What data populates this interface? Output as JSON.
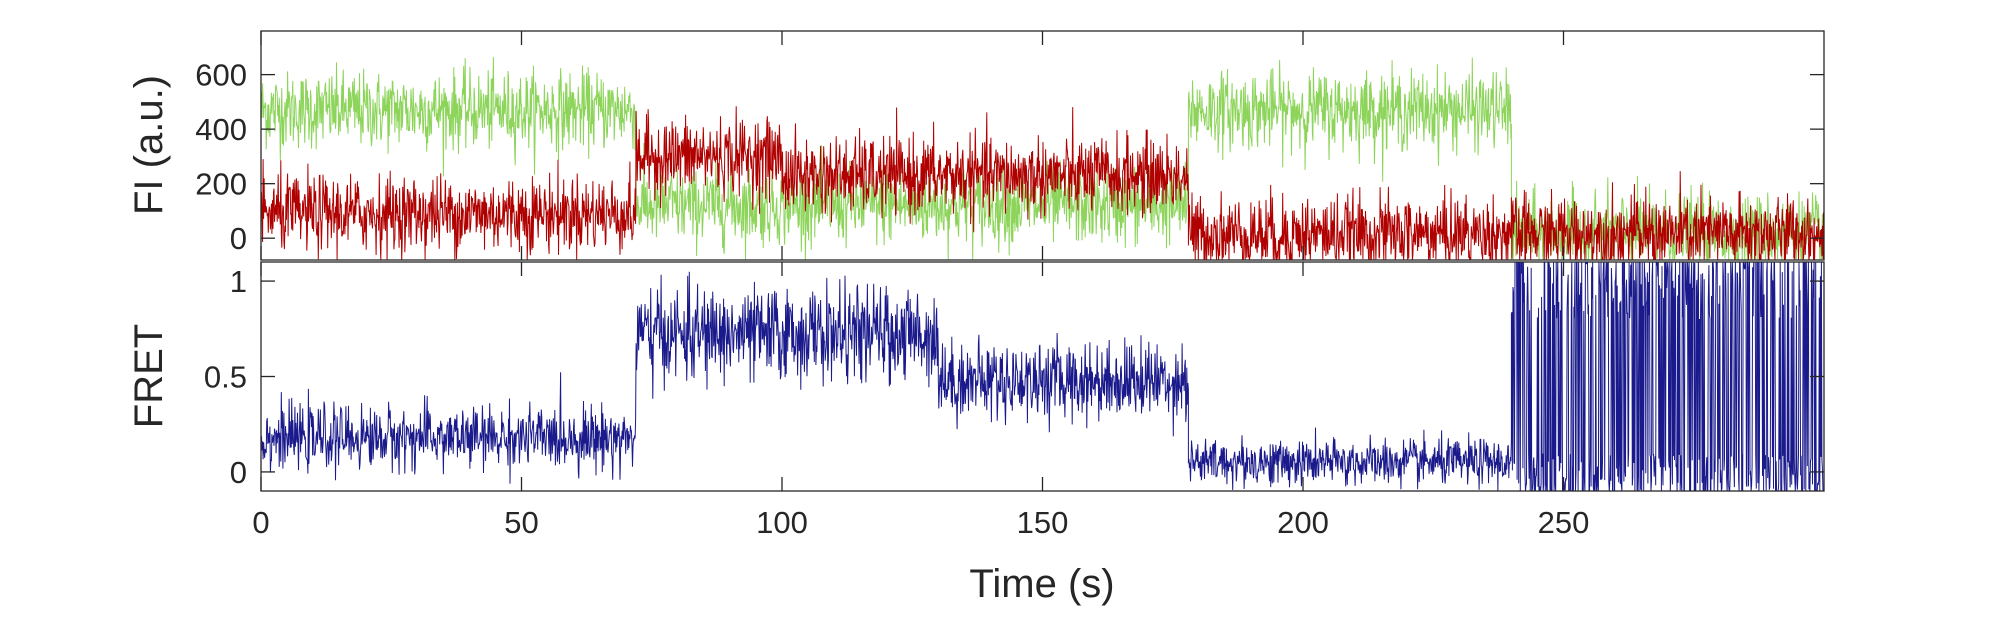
{
  "chart_data": [
    {
      "type": "line",
      "title": "",
      "xlabel": "",
      "ylabel": "FI (a.u.)",
      "xlim": [
        0,
        300
      ],
      "ylim": [
        -80,
        760
      ],
      "xticks": [
        0,
        50,
        100,
        150,
        200,
        250
      ],
      "yticks": [
        0,
        200,
        400,
        600
      ],
      "ytick_labels": [
        "0",
        "200",
        "400",
        "600"
      ],
      "grid": false,
      "noise_std": 70,
      "series": [
        {
          "color": "#8cd45a",
          "segments": [
            {
              "x_start": 0,
              "x_end": 72,
              "level": 470
            },
            {
              "x_start": 72,
              "x_end": 178,
              "level": 120
            },
            {
              "x_start": 178,
              "x_end": 240,
              "level": 470
            },
            {
              "x_start": 240,
              "x_end": 300,
              "level": 20
            }
          ]
        },
        {
          "color": "#b00000",
          "segments": [
            {
              "x_start": 0,
              "x_end": 72,
              "level": 90
            },
            {
              "x_start": 72,
              "x_end": 100,
              "level": 300
            },
            {
              "x_start": 100,
              "x_end": 178,
              "level": 230
            },
            {
              "x_start": 178,
              "x_end": 240,
              "level": 15
            },
            {
              "x_start": 240,
              "x_end": 300,
              "level": 15
            }
          ]
        }
      ]
    },
    {
      "type": "line",
      "title": "",
      "xlabel": "Time (s)",
      "ylabel": "FRET",
      "xlim": [
        0,
        300
      ],
      "ylim": [
        -0.1,
        1.1
      ],
      "xticks": [
        0,
        50,
        100,
        150,
        200,
        250
      ],
      "xtick_labels": [
        "0",
        "50",
        "100",
        "150",
        "200",
        "250"
      ],
      "yticks": [
        0,
        0.5,
        1
      ],
      "ytick_labels": [
        "0",
        "0.5",
        "1"
      ],
      "grid": false,
      "series": [
        {
          "color": "#1a1a8c",
          "segments": [
            {
              "x_start": 0,
              "x_end": 72,
              "level": 0.18,
              "noise": 0.08
            },
            {
              "x_start": 72,
              "x_end": 130,
              "level": 0.72,
              "noise": 0.12
            },
            {
              "x_start": 130,
              "x_end": 178,
              "level": 0.48,
              "noise": 0.1
            },
            {
              "x_start": 178,
              "x_end": 240,
              "level": 0.05,
              "noise": 0.06
            },
            {
              "x_start": 240,
              "x_end": 300,
              "level": 0.5,
              "noise": 0.6
            }
          ]
        }
      ]
    }
  ]
}
